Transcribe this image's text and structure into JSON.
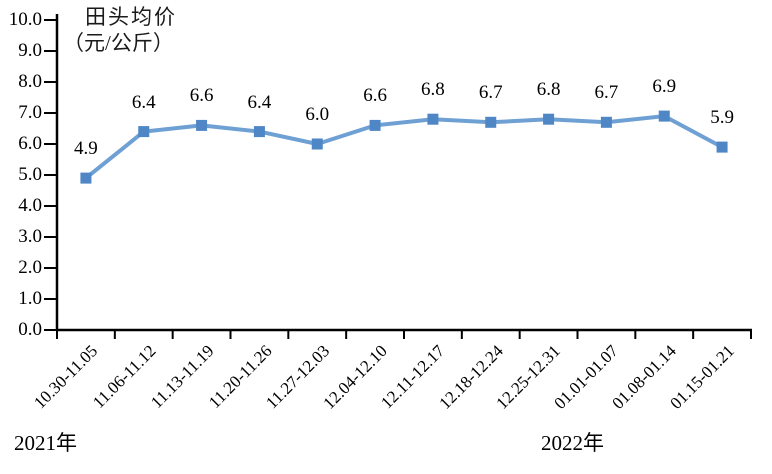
{
  "chart": {
    "title_line1": "田头均价",
    "title_line2": "（元/公斤）",
    "year_left": "2021年",
    "year_right": "2022年"
  },
  "chart_data": {
    "type": "line",
    "title": "田头均价（元/公斤）",
    "categories": [
      "10.30-11.05",
      "11.06-11.12",
      "11.13-11.19",
      "11.20-11.26",
      "11.27-12.03",
      "12.04-12.10",
      "12.11-12.17",
      "12.18-12.24",
      "12.25-12.31",
      "01.01-01.07",
      "01.08-01.14",
      "01.15-01.21"
    ],
    "values": [
      4.9,
      6.4,
      6.6,
      6.4,
      6.0,
      6.6,
      6.8,
      6.7,
      6.8,
      6.7,
      6.9,
      5.9
    ],
    "xlabel": "",
    "ylabel": "田头均价（元/公斤）",
    "ylim": [
      0,
      10
    ],
    "y_tick_step": 1.0,
    "y_tick_labels": [
      "0.0",
      "1.0",
      "2.0",
      "3.0",
      "4.0",
      "5.0",
      "6.0",
      "7.0",
      "8.0",
      "9.0",
      "10.0"
    ],
    "x_axis_annotations": [
      "2021年",
      "2022年"
    ],
    "grid": false,
    "legend": "none",
    "data_labels_shown": true,
    "line_color": "#6fa0d4",
    "marker_color": "#4e86c6",
    "marker_shape": "square",
    "axis_color": "#000000",
    "text_color": "#000000"
  }
}
